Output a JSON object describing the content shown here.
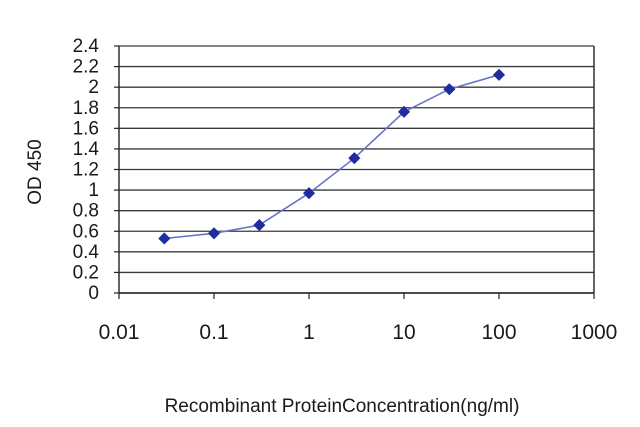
{
  "chart_data": {
    "type": "line",
    "title": "",
    "xlabel": "Recombinant ProteinConcentration(ng/ml)",
    "ylabel": "OD 450",
    "x_scale": "log",
    "xlim": [
      0.01,
      1000
    ],
    "ylim": [
      0,
      2.4
    ],
    "x_ticks": [
      "0.01",
      "0.1",
      "1",
      "10",
      "100",
      "1000"
    ],
    "y_ticks": [
      "0",
      "0.2",
      "0.4",
      "0.6",
      "0.8",
      "1",
      "1.2",
      "1.4",
      "1.6",
      "1.8",
      "2",
      "2.2",
      "2.4"
    ],
    "grid": "horizontal",
    "legend": "none",
    "series": [
      {
        "color": "#1f2d9e",
        "marker": "diamond",
        "x": [
          0.03,
          0.1,
          0.3,
          1,
          3,
          10,
          30,
          100
        ],
        "y": [
          0.53,
          0.58,
          0.66,
          0.97,
          1.31,
          1.76,
          1.98,
          2.12
        ]
      }
    ]
  }
}
